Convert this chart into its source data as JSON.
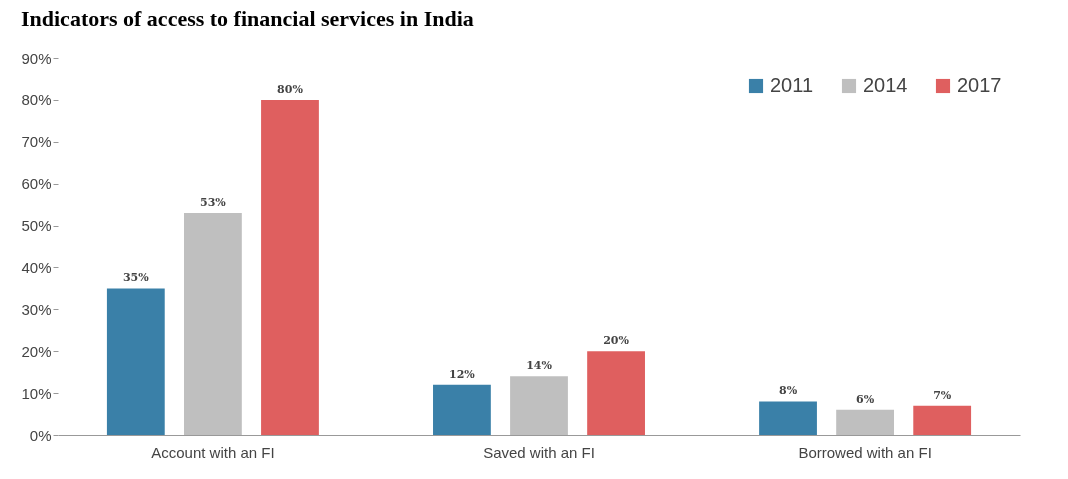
{
  "chart_data": {
    "type": "bar",
    "title": "Indicators of access to financial services in India",
    "categories": [
      "Account with an FI",
      "Saved with an FI",
      "Borrowed with an FI"
    ],
    "series": [
      {
        "name": "2011",
        "color": "#3a80a8",
        "values": [
          35,
          12,
          8
        ],
        "value_labels": [
          "35%",
          "12%",
          "8%"
        ]
      },
      {
        "name": "2014",
        "color": "#bfbfbf",
        "values": [
          53,
          14,
          6
        ],
        "value_labels": [
          "53%",
          "14%",
          "6%"
        ]
      },
      {
        "name": "2017",
        "color": "#df5f5f",
        "values": [
          80,
          20,
          7
        ],
        "value_labels": [
          "80%",
          "20%",
          "7%"
        ]
      }
    ],
    "ylim": [
      0,
      90
    ],
    "yticks": [
      {
        "value": 0,
        "label": "0%"
      },
      {
        "value": 10,
        "label": "10%"
      },
      {
        "value": 20,
        "label": "20%"
      },
      {
        "value": 30,
        "label": "30%"
      },
      {
        "value": 40,
        "label": "40%"
      },
      {
        "value": 50,
        "label": "50%"
      },
      {
        "value": 60,
        "label": "60%"
      },
      {
        "value": 70,
        "label": "70%"
      },
      {
        "value": 80,
        "label": "80%"
      },
      {
        "value": 90,
        "label": "90%"
      }
    ],
    "legend": "top right",
    "grid": false
  }
}
